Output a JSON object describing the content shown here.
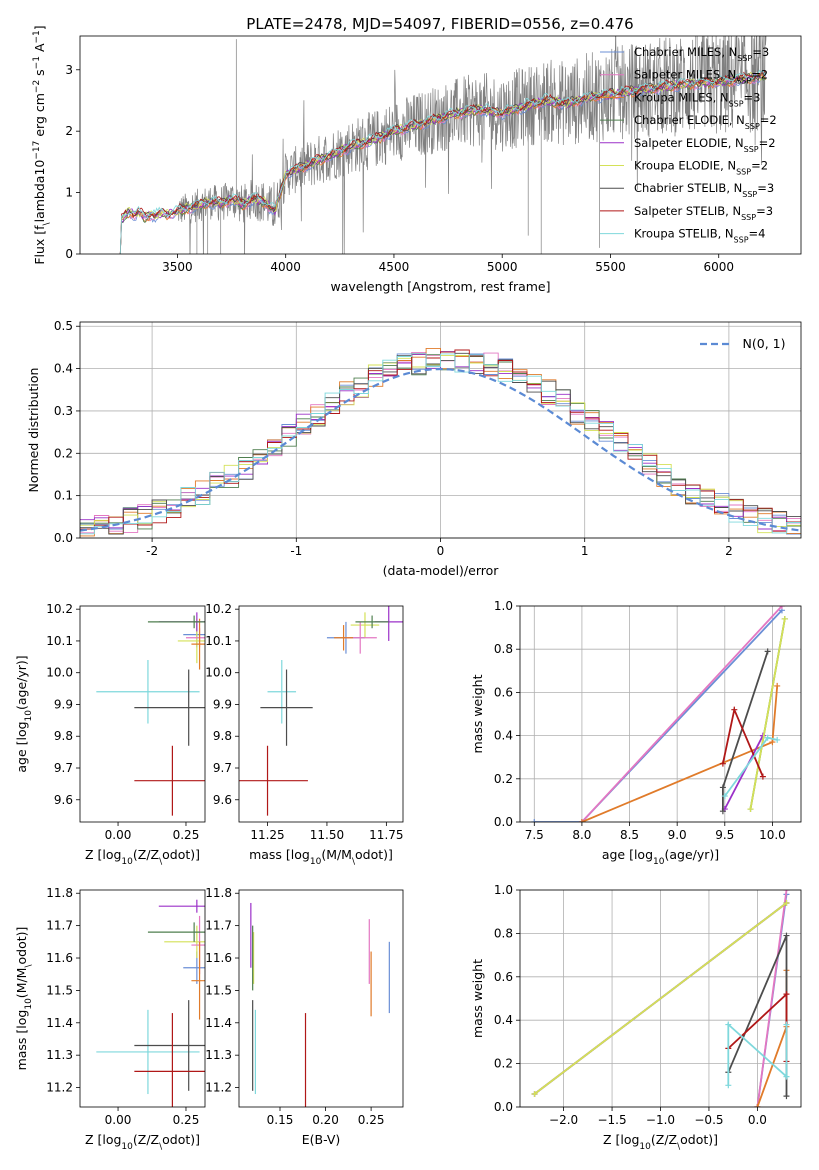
{
  "figure": {
    "suptitle": "PLATE=2478, MJD=54097, FIBERID=0556, z=0.476"
  },
  "colors": {
    "Chabrier MILES": "#6b8fd6",
    "Salpeter MILES": "#e377c2",
    "Kroupa MILES": "#e07b2a",
    "Chabrier ELODIE": "#4f7f4f",
    "Salpeter ELODIE": "#9b30c8",
    "Kroupa ELODIE": "#d4e157",
    "Chabrier STELIB": "#4d4d4d",
    "Salpeter STELIB": "#b01818",
    "Kroupa STELIB": "#7fd8dc",
    "gaussian": "#5b8ad4",
    "data": "#808080"
  },
  "chart_data": [
    {
      "id": "spectrum",
      "type": "line",
      "xlabel": "wavelength [Angstrom, rest frame]",
      "ylabel": "Flux [f$_\\lambda$10$^{-17}$ erg cm$^{-2}$ s$^{-1}$ A$^{-1}$]",
      "xlim": [
        3050,
        6380
      ],
      "ylim": [
        0,
        3.55
      ],
      "xticks": [
        3500,
        4000,
        4500,
        5000,
        5500,
        6000
      ],
      "yticks": [
        0,
        1,
        2,
        3
      ],
      "grid": false,
      "legend_position": "top-right",
      "legend": [
        {
          "label": "Chabrier MILES, N$_{SSP}$=3",
          "series": "Chabrier MILES"
        },
        {
          "label": "Salpeter MILES, N$_{SSP}$=2",
          "series": "Salpeter MILES"
        },
        {
          "label": "Kroupa MILES, N$_{SSP}$=3",
          "series": "Kroupa MILES"
        },
        {
          "label": "Chabrier ELODIE, N$_{SSP}$=2",
          "series": "Chabrier ELODIE"
        },
        {
          "label": "Salpeter ELODIE, N$_{SSP}$=2",
          "series": "Salpeter ELODIE"
        },
        {
          "label": "Kroupa ELODIE, N$_{SSP}$=2",
          "series": "Kroupa ELODIE"
        },
        {
          "label": "Chabrier STELIB, N$_{SSP}$=3",
          "series": "Chabrier STELIB"
        },
        {
          "label": "Salpeter STELIB, N$_{SSP}$=3",
          "series": "Salpeter STELIB"
        },
        {
          "label": "Kroupa STELIB, N$_{SSP}$=4",
          "series": "Kroupa STELIB"
        }
      ],
      "model_start": 3230,
      "model_end": 6220,
      "data_start": 3500,
      "data_end": 6220,
      "model_profile": {
        "x": [
          3230,
          3250,
          3280,
          3300,
          3320,
          3350,
          3380,
          3400,
          3430,
          3460,
          3500,
          3550,
          3600,
          3650,
          3700,
          3750,
          3800,
          3850,
          3900,
          3950,
          4000,
          4100,
          4200,
          4300,
          4400,
          4500,
          4600,
          4700,
          4800,
          4900,
          5000,
          5100,
          5200,
          5300,
          5400,
          5500,
          5600,
          5700,
          5800,
          5900,
          6000,
          6100,
          6220
        ],
        "y": [
          0.5,
          0.6,
          0.7,
          0.62,
          0.68,
          0.6,
          0.65,
          0.62,
          0.68,
          0.64,
          0.7,
          0.75,
          0.8,
          0.85,
          0.82,
          0.9,
          0.8,
          0.9,
          0.85,
          0.7,
          1.3,
          1.45,
          1.6,
          1.75,
          1.85,
          2.0,
          2.1,
          2.2,
          2.3,
          2.35,
          2.3,
          2.4,
          2.5,
          2.45,
          2.55,
          2.6,
          2.65,
          2.7,
          2.75,
          2.78,
          2.8,
          2.85,
          2.9
        ]
      },
      "data_spikes": [
        {
          "x": 3772,
          "y": 3.5
        },
        {
          "x": 4263,
          "y": 0.0
        },
        {
          "x": 3590,
          "y": 0.0
        },
        {
          "x": 3640,
          "y": 0.0
        },
        {
          "x": 3700,
          "y": 0.0
        },
        {
          "x": 5180,
          "y": 0.0
        },
        {
          "x": 5450,
          "y": 0.1
        },
        {
          "x": 5120,
          "y": 0.3
        }
      ]
    },
    {
      "id": "residuals",
      "type": "line",
      "xlabel": "(data-model)/error",
      "ylabel": "Normed distribution",
      "xlim": [
        -2.5,
        2.5
      ],
      "ylim": [
        0,
        0.51
      ],
      "xticks": [
        -2,
        -1,
        0,
        1,
        2
      ],
      "yticks": [
        0.0,
        0.1,
        0.2,
        0.3,
        0.4,
        0.5
      ],
      "grid": true,
      "legend_position": "top-right",
      "gaussian_label": "$\\mathcal{N}(0,1)$",
      "bin_width": 0.1,
      "base_hist": [
        0.02,
        0.022,
        0.024,
        0.028,
        0.032,
        0.036,
        0.04,
        0.05,
        0.06,
        0.07,
        0.085,
        0.1,
        0.12,
        0.13,
        0.14,
        0.15,
        0.17,
        0.19,
        0.2,
        0.22,
        0.24,
        0.27,
        0.29,
        0.3,
        0.35,
        0.36,
        0.37,
        0.38,
        0.4,
        0.39,
        0.38,
        0.4,
        0.42,
        0.4,
        0.39,
        0.4,
        0.38,
        0.36,
        0.36,
        0.4,
        0.38,
        0.42,
        0.4,
        0.38,
        0.36,
        0.37,
        0.34,
        0.32,
        0.3,
        0.28
      ]
    },
    {
      "id": "age_vs_Z",
      "type": "scatter",
      "xlabel": "Z [log$_{10}$($Z/Z_\\odot$)]",
      "ylabel": "age  [log$_{10}$($age/yr$)]",
      "xlim": [
        -0.14,
        0.32
      ],
      "ylim": [
        9.53,
        10.21
      ],
      "xticks": [
        0.0,
        0.25
      ],
      "xticklabels": [
        "0.00",
        "0.25"
      ],
      "yticks": [
        9.6,
        9.7,
        9.8,
        9.9,
        10.0,
        10.1,
        10.2
      ],
      "grid": false,
      "points": [
        {
          "series": "Kroupa STELIB",
          "x": 0.11,
          "xerr": 0.19,
          "y": 9.94,
          "yerr": 0.1
        },
        {
          "series": "Chabrier STELIB",
          "x": 0.26,
          "xerr": 0.2,
          "y": 9.89,
          "yerr": 0.12
        },
        {
          "series": "Salpeter STELIB",
          "x": 0.2,
          "xerr": 0.14,
          "y": 9.66,
          "yerr": 0.11
        },
        {
          "series": "Chabrier MILES",
          "x": 0.29,
          "xerr": 0.05,
          "y": 10.12,
          "yerr": 0.04
        },
        {
          "series": "Kroupa ELODIE",
          "x": 0.29,
          "xerr": 0.07,
          "y": 10.1,
          "yerr": 0.07
        },
        {
          "series": "Salpeter ELODIE",
          "x": 0.29,
          "xerr": 0.14,
          "y": 10.16,
          "yerr": 0.03
        },
        {
          "series": "Salpeter MILES",
          "x": 0.3,
          "xerr": 0.05,
          "y": 10.11,
          "yerr": 0.03
        },
        {
          "series": "Kroupa MILES",
          "x": 0.3,
          "xerr": 0.03,
          "y": 10.09,
          "yerr": 0.08
        },
        {
          "series": "Chabrier ELODIE",
          "x": 0.28,
          "xerr": 0.17,
          "y": 10.16,
          "yerr": 0.02
        }
      ]
    },
    {
      "id": "age_vs_mass",
      "type": "scatter",
      "xlabel": "mass [log$_{10}$($M/M_\\odot$)]",
      "ylabel": "",
      "xlim": [
        11.13,
        11.82
      ],
      "ylim": [
        9.53,
        10.21
      ],
      "xticks": [
        11.25,
        11.5,
        11.75
      ],
      "xticklabels": [
        "11.25",
        "11.50",
        "11.75"
      ],
      "yticks": [
        9.6,
        9.7,
        9.8,
        9.9,
        10.0,
        10.1,
        10.2
      ],
      "grid": false,
      "points": [
        {
          "series": "Kroupa STELIB",
          "x": 11.31,
          "xerr": 0.06,
          "y": 9.94,
          "yerr": 0.1
        },
        {
          "series": "Chabrier STELIB",
          "x": 11.33,
          "xerr": 0.11,
          "y": 9.89,
          "yerr": 0.12
        },
        {
          "series": "Salpeter STELIB",
          "x": 11.25,
          "xerr": 0.17,
          "y": 9.66,
          "yerr": 0.11
        },
        {
          "series": "Chabrier MILES",
          "x": 11.58,
          "xerr": 0.08,
          "y": 10.11,
          "yerr": 0.05
        },
        {
          "series": "Kroupa ELODIE",
          "x": 11.66,
          "xerr": 0.06,
          "y": 10.15,
          "yerr": 0.04
        },
        {
          "series": "Salpeter ELODIE",
          "x": 11.76,
          "xerr": 0.06,
          "y": 10.16,
          "yerr": 0.06
        },
        {
          "series": "Salpeter MILES",
          "x": 11.64,
          "xerr": 0.07,
          "y": 10.11,
          "yerr": 0.05
        },
        {
          "series": "Kroupa MILES",
          "x": 11.57,
          "xerr": 0.04,
          "y": 10.11,
          "yerr": 0.04
        },
        {
          "series": "Chabrier ELODIE",
          "x": 11.69,
          "xerr": 0.07,
          "y": 10.16,
          "yerr": 0.02
        }
      ]
    },
    {
      "id": "weight_vs_age",
      "type": "line",
      "xlabel": "age  [log$_{10}$($age/yr$)]",
      "ylabel": "mass weight",
      "xlim": [
        7.35,
        10.3
      ],
      "ylim": [
        0.0,
        1.0
      ],
      "xticks": [
        7.5,
        8.0,
        8.5,
        9.0,
        9.5,
        10.0
      ],
      "xticklabels": [
        "7.5",
        "8.0",
        "8.5",
        "9.0",
        "9.5",
        "10.0"
      ],
      "yticks": [
        0.0,
        0.2,
        0.4,
        0.6,
        0.8,
        1.0
      ],
      "grid": true,
      "series": [
        {
          "name": "Chabrier MILES",
          "x": [
            7.5,
            8.0,
            10.1
          ],
          "y": [
            0.0,
            0.0,
            0.98
          ]
        },
        {
          "name": "Salpeter MILES",
          "x": [
            8.0,
            10.1
          ],
          "y": [
            0.0,
            1.0
          ]
        },
        {
          "name": "Kroupa MILES",
          "x": [
            8.0,
            10.0,
            10.05
          ],
          "y": [
            0.0,
            0.37,
            0.63
          ]
        },
        {
          "name": "Chabrier ELODIE",
          "x": [
            9.77,
            10.13
          ],
          "y": [
            0.06,
            0.94
          ]
        },
        {
          "name": "Salpeter ELODIE",
          "x": [
            9.5,
            9.9
          ],
          "y": [
            0.06,
            0.4
          ]
        },
        {
          "name": "Kroupa ELODIE",
          "x": [
            9.77,
            10.13
          ],
          "y": [
            0.06,
            0.94
          ]
        },
        {
          "name": "Chabrier STELIB",
          "x": [
            9.48,
            9.48,
            9.95
          ],
          "y": [
            0.05,
            0.16,
            0.79
          ]
        },
        {
          "name": "Salpeter STELIB",
          "x": [
            9.48,
            9.6,
            9.9
          ],
          "y": [
            0.27,
            0.52,
            0.21
          ]
        },
        {
          "name": "Kroupa STELIB",
          "x": [
            9.5,
            9.95,
            10.05
          ],
          "y": [
            0.12,
            0.39,
            0.38
          ]
        }
      ]
    },
    {
      "id": "mass_vs_Z",
      "type": "scatter",
      "xlabel": "Z [log$_{10}$($Z/Z_\\odot$)]",
      "ylabel": "mass [log$_{10}$($M/M_\\odot$)]",
      "xlim": [
        -0.14,
        0.32
      ],
      "ylim": [
        11.14,
        11.81
      ],
      "xticks": [
        0.0,
        0.25
      ],
      "xticklabels": [
        "0.00",
        "0.25"
      ],
      "yticks": [
        11.2,
        11.3,
        11.4,
        11.5,
        11.6,
        11.7,
        11.8
      ],
      "grid": false,
      "points": [
        {
          "series": "Kroupa STELIB",
          "x": 0.11,
          "xerr": 0.19,
          "y": 11.31,
          "yerr": 0.13
        },
        {
          "series": "Chabrier STELIB",
          "x": 0.26,
          "xerr": 0.2,
          "y": 11.33,
          "yerr": 0.14
        },
        {
          "series": "Salpeter STELIB",
          "x": 0.2,
          "xerr": 0.14,
          "y": 11.25,
          "yerr": 0.18
        },
        {
          "series": "Chabrier MILES",
          "x": 0.29,
          "xerr": 0.05,
          "y": 11.57,
          "yerr": 0.05
        },
        {
          "series": "Kroupa ELODIE",
          "x": 0.29,
          "xerr": 0.12,
          "y": 11.65,
          "yerr": 0.05
        },
        {
          "series": "Salpeter ELODIE",
          "x": 0.29,
          "xerr": 0.14,
          "y": 11.76,
          "yerr": 0.02
        },
        {
          "series": "Salpeter MILES",
          "x": 0.3,
          "xerr": 0.03,
          "y": 11.64,
          "yerr": 0.09
        },
        {
          "series": "Kroupa MILES",
          "x": 0.3,
          "xerr": 0.03,
          "y": 11.53,
          "yerr": 0.12
        },
        {
          "series": "Chabrier ELODIE",
          "x": 0.28,
          "xerr": 0.17,
          "y": 11.68,
          "yerr": 0.03
        }
      ]
    },
    {
      "id": "mass_vs_ebv",
      "type": "scatter",
      "xlabel": "E(B-V)",
      "ylabel": "",
      "xlim": [
        0.105,
        0.285
      ],
      "ylim": [
        11.14,
        11.81
      ],
      "xticks": [
        0.15,
        0.2,
        0.25
      ],
      "xticklabels": [
        "0.15",
        "0.20",
        "0.25"
      ],
      "yticks": [
        11.2,
        11.3,
        11.4,
        11.5,
        11.6,
        11.7,
        11.8
      ],
      "grid": false,
      "points": [
        {
          "series": "Kroupa STELIB",
          "x": 0.123,
          "y": 11.31,
          "yerr": 0.13
        },
        {
          "series": "Chabrier STELIB",
          "x": 0.12,
          "y": 11.33,
          "yerr": 0.14
        },
        {
          "series": "Salpeter STELIB",
          "x": 0.178,
          "y": 11.25,
          "yerr": 0.18
        },
        {
          "series": "Chabrier MILES",
          "x": 0.27,
          "y": 11.54,
          "yerr": 0.11
        },
        {
          "series": "Kroupa ELODIE",
          "x": 0.121,
          "y": 11.6,
          "yerr": 0.08
        },
        {
          "series": "Salpeter ELODIE",
          "x": 0.118,
          "y": 11.67,
          "yerr": 0.1
        },
        {
          "series": "Salpeter MILES",
          "x": 0.248,
          "y": 11.62,
          "yerr": 0.1
        },
        {
          "series": "Kroupa MILES",
          "x": 0.25,
          "y": 11.52,
          "yerr": 0.1
        },
        {
          "series": "Chabrier ELODIE",
          "x": 0.12,
          "y": 11.6,
          "yerr": 0.1
        }
      ]
    },
    {
      "id": "weight_vs_Z",
      "type": "line",
      "xlabel": "Z [log$_{10}$($Z/Z_\\odot$)]",
      "ylabel": "mass weight",
      "xlim": [
        -2.45,
        0.45
      ],
      "ylim": [
        0.0,
        1.0
      ],
      "xticks": [
        -2.0,
        -1.5,
        -1.0,
        -0.5,
        0.0
      ],
      "xticklabels": [
        "−2.0",
        "−1.5",
        "−1.0",
        "−0.5",
        "0.0"
      ],
      "yticks": [
        0.0,
        0.2,
        0.4,
        0.6,
        0.8,
        1.0
      ],
      "grid": true,
      "series": [
        {
          "name": "Chabrier MILES",
          "x": [
            0.0,
            0.3
          ],
          "y": [
            0.0,
            0.98
          ]
        },
        {
          "name": "Salpeter MILES",
          "x": [
            0.0,
            0.3
          ],
          "y": [
            0.0,
            1.0
          ]
        },
        {
          "name": "Kroupa MILES",
          "x": [
            0.0,
            0.3,
            0.3
          ],
          "y": [
            0.0,
            0.37,
            0.63
          ]
        },
        {
          "name": "Chabrier ELODIE",
          "x": [
            -2.3,
            0.3
          ],
          "y": [
            0.06,
            0.94
          ]
        },
        {
          "name": "Salpeter ELODIE",
          "x": [
            -2.3,
            0.3
          ],
          "y": [
            0.06,
            0.94
          ]
        },
        {
          "name": "Kroupa ELODIE",
          "x": [
            -2.3,
            0.3
          ],
          "y": [
            0.06,
            0.94
          ]
        },
        {
          "name": "Chabrier STELIB",
          "x": [
            -0.3,
            0.3,
            0.3
          ],
          "y": [
            0.16,
            0.79,
            0.05
          ]
        },
        {
          "name": "Salpeter STELIB",
          "x": [
            -0.3,
            0.3,
            0.3
          ],
          "y": [
            0.27,
            0.52,
            0.21
          ]
        },
        {
          "name": "Kroupa STELIB",
          "x": [
            -0.3,
            -0.3,
            0.3,
            0.3
          ],
          "y": [
            0.1,
            0.38,
            0.14,
            0.38
          ]
        }
      ]
    }
  ]
}
